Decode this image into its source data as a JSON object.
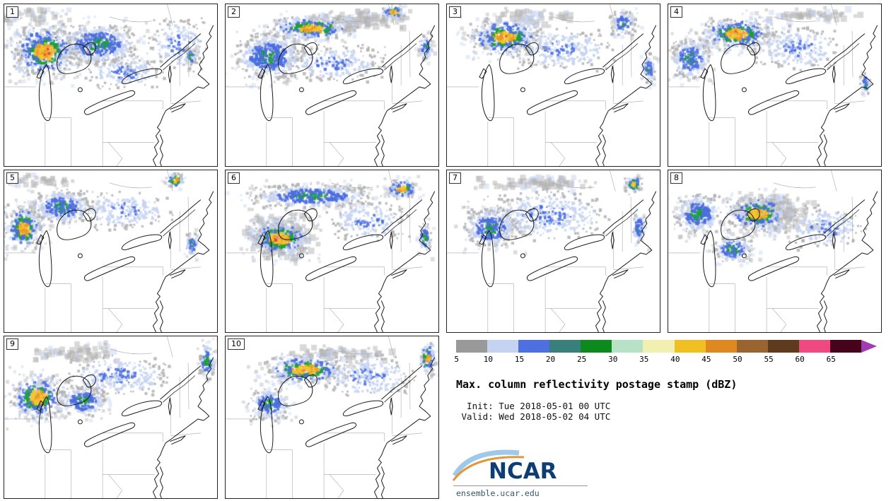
{
  "panels": [
    {
      "label": "1",
      "seed": 11,
      "clusters": [
        [
          40,
          12,
          55,
          12,
          0
        ],
        [
          55,
          65,
          50,
          40,
          3
        ],
        [
          130,
          55,
          60,
          30,
          2
        ],
        [
          245,
          55,
          45,
          40,
          1
        ],
        [
          262,
          72,
          9,
          14,
          2
        ],
        [
          170,
          95,
          60,
          25,
          1
        ]
      ]
    },
    {
      "label": "2",
      "seed": 22,
      "clusters": [
        [
          180,
          18,
          90,
          16,
          0
        ],
        [
          120,
          32,
          65,
          18,
          3
        ],
        [
          236,
          10,
          18,
          11,
          3
        ],
        [
          60,
          72,
          50,
          35,
          2
        ],
        [
          150,
          82,
          80,
          28,
          1
        ],
        [
          282,
          60,
          12,
          18,
          2
        ]
      ]
    },
    {
      "label": "3",
      "seed": 33,
      "clusters": [
        [
          120,
          14,
          70,
          12,
          0
        ],
        [
          80,
          45,
          55,
          28,
          3
        ],
        [
          160,
          62,
          80,
          32,
          1
        ],
        [
          248,
          25,
          20,
          18,
          2
        ],
        [
          284,
          90,
          10,
          24,
          2
        ]
      ]
    },
    {
      "label": "4",
      "seed": 44,
      "clusters": [
        [
          200,
          12,
          80,
          10,
          0
        ],
        [
          95,
          40,
          55,
          25,
          3
        ],
        [
          30,
          75,
          30,
          30,
          2
        ],
        [
          180,
          60,
          70,
          33,
          1
        ],
        [
          277,
          112,
          8,
          18,
          2
        ]
      ]
    },
    {
      "label": "5",
      "seed": 55,
      "clusters": [
        [
          50,
          12,
          55,
          10,
          0
        ],
        [
          25,
          80,
          30,
          35,
          3
        ],
        [
          80,
          50,
          45,
          25,
          2
        ],
        [
          240,
          12,
          15,
          11,
          3
        ],
        [
          170,
          55,
          70,
          30,
          1
        ],
        [
          264,
          103,
          10,
          18,
          2
        ]
      ]
    },
    {
      "label": "6",
      "seed": 66,
      "clusters": [
        [
          75,
          90,
          60,
          38,
          0
        ],
        [
          75,
          95,
          45,
          28,
          3
        ],
        [
          120,
          35,
          90,
          18,
          2
        ],
        [
          248,
          24,
          24,
          17,
          3
        ],
        [
          200,
          70,
          60,
          30,
          1
        ],
        [
          280,
          95,
          10,
          24,
          2
        ]
      ]
    },
    {
      "label": "7",
      "seed": 77,
      "clusters": [
        [
          120,
          15,
          90,
          12,
          0
        ],
        [
          140,
          62,
          100,
          38,
          1
        ],
        [
          60,
          80,
          40,
          30,
          2
        ],
        [
          262,
          18,
          14,
          13,
          3
        ],
        [
          270,
          80,
          10,
          24,
          2
        ]
      ]
    },
    {
      "label": "8",
      "seed": 88,
      "clusters": [
        [
          140,
          55,
          70,
          33,
          0
        ],
        [
          125,
          60,
          45,
          28,
          3
        ],
        [
          40,
          60,
          35,
          30,
          2
        ],
        [
          220,
          80,
          60,
          33,
          1
        ],
        [
          90,
          110,
          30,
          20,
          2
        ]
      ]
    },
    {
      "label": "9",
      "seed": 99,
      "clusters": [
        [
          90,
          20,
          70,
          15,
          0
        ],
        [
          45,
          85,
          40,
          35,
          3
        ],
        [
          110,
          90,
          35,
          22,
          2
        ],
        [
          160,
          55,
          80,
          33,
          1
        ],
        [
          285,
          35,
          12,
          28,
          2
        ]
      ]
    },
    {
      "label": "10",
      "seed": 110,
      "clusters": [
        [
          160,
          20,
          80,
          12,
          0
        ],
        [
          110,
          45,
          60,
          22,
          3
        ],
        [
          60,
          95,
          30,
          25,
          2
        ],
        [
          200,
          55,
          70,
          33,
          1
        ],
        [
          284,
          30,
          12,
          26,
          3
        ]
      ]
    }
  ],
  "colorbar": {
    "ticks": [
      "5",
      "10",
      "15",
      "20",
      "25",
      "30",
      "35",
      "40",
      "45",
      "50",
      "55",
      "60",
      "65"
    ],
    "colors": [
      "#999999",
      "#c5d3f0",
      "#4e6fe0",
      "#39807d",
      "#0c8a1e",
      "#b8e2c8",
      "#f2f0b0",
      "#f0c020",
      "#e08820",
      "#9a6430",
      "#5e3a1e",
      "#f04880",
      "#46041c"
    ],
    "arrow_color": "#a03cb4"
  },
  "info": {
    "title": "Max. column reflectivity postage stamp (dBZ)",
    "init_line": "  Init: Tue 2018-05-01 00 UTC",
    "valid_line": " Valid: Wed 2018-05-02 04 UTC",
    "logo_text": "NCAR",
    "url": "ensemble.ucar.edu"
  },
  "radar_palette": {
    "gray": "#b3b3b3",
    "pale": "#c6d4f2",
    "blue": "#4a6de0",
    "green": "#17a42a",
    "gold": "#f2c72e",
    "orange": "#ec9a2a",
    "red": "#e04040",
    "pink": "#ee5a9a"
  }
}
